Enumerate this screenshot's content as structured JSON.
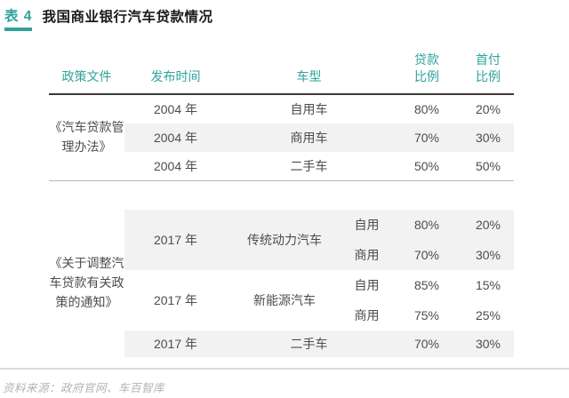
{
  "title": {
    "label": "表 4",
    "text": "我国商业银行汽车贷款情况"
  },
  "colors": {
    "accent": "#2FA39C",
    "row_shade": "#F2F2F2",
    "header_rule": "#3A3A3A",
    "body_text": "#4D4D4D",
    "footer_text": "#B3B3B3"
  },
  "table": {
    "headers": {
      "policy": "政策文件",
      "time": "发布时间",
      "type": "车型",
      "loan_ratio": "贷款比例",
      "down_payment_ratio": "首付比例"
    },
    "groups": [
      {
        "policy": "《汽车贷款管理办法》",
        "rows": [
          {
            "time": "2004 年",
            "type": "自用车",
            "loan": "80%",
            "down": "20%"
          },
          {
            "time": "2004 年",
            "type": "商用车",
            "loan": "70%",
            "down": "30%"
          },
          {
            "time": "2004 年",
            "type": "二手车",
            "loan": "50%",
            "down": "50%"
          }
        ]
      },
      {
        "policy": "《关于调整汽车贷款有关政策的通知》",
        "blocks": [
          {
            "time": "2017 年",
            "type": "传统动力汽车",
            "subrows": [
              {
                "subtype": "自用",
                "loan": "80%",
                "down": "20%"
              },
              {
                "subtype": "商用",
                "loan": "70%",
                "down": "30%"
              }
            ]
          },
          {
            "time": "2017 年",
            "type": "新能源汽车",
            "subrows": [
              {
                "subtype": "自用",
                "loan": "85%",
                "down": "15%"
              },
              {
                "subtype": "商用",
                "loan": "75%",
                "down": "25%"
              }
            ]
          },
          {
            "time": "2017 年",
            "type": "二手车",
            "subrows": [
              {
                "loan": "70%",
                "down": "30%"
              }
            ]
          }
        ]
      }
    ]
  },
  "footer": {
    "source": "资料来源：政府官网、车百智库"
  }
}
